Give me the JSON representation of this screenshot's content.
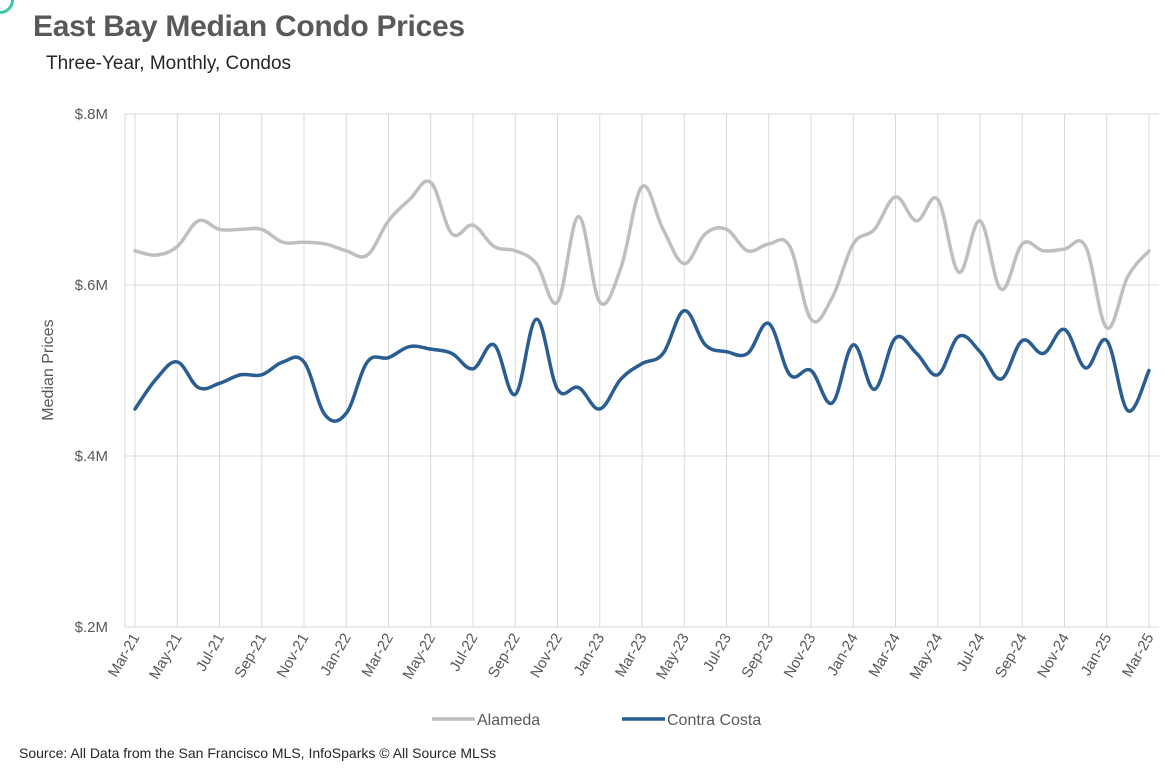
{
  "header": {
    "title": "East Bay Median Condo Prices",
    "subtitle": "Three-Year, Monthly, Condos"
  },
  "footer": {
    "source": "Source: All Data from the San Francisco MLS, InfoSparks © All Source MLSs"
  },
  "colors": {
    "accent": "#3cc8a8",
    "alameda": "#bfbfbf",
    "contra_costa": "#2a5d92",
    "grid": "#d9d9d9"
  },
  "chart_data": {
    "type": "line",
    "title": "East Bay Median Condo Prices",
    "subtitle": "Three-Year, Monthly, Condos",
    "xlabel": "",
    "ylabel": "Median Prices",
    "ylim": [
      200000,
      800000
    ],
    "y_ticks": [
      {
        "value": 200000,
        "label": "$.2M"
      },
      {
        "value": 400000,
        "label": "$.4M"
      },
      {
        "value": 600000,
        "label": "$.6M"
      },
      {
        "value": 800000,
        "label": "$.8M"
      }
    ],
    "x_tick_labels": [
      "Mar-21",
      "May-21",
      "Jul-21",
      "Sep-21",
      "Nov-21",
      "Jan-22",
      "Mar-22",
      "May-22",
      "Jul-22",
      "Sep-22",
      "Nov-22",
      "Jan-23",
      "Mar-23",
      "May-23",
      "Jul-23",
      "Sep-23",
      "Nov-23",
      "Jan-24",
      "Mar-24",
      "May-24",
      "Jul-24",
      "Sep-24",
      "Nov-24",
      "Jan-25",
      "Mar-25"
    ],
    "categories": [
      "Mar-21",
      "Apr-21",
      "May-21",
      "Jun-21",
      "Jul-21",
      "Aug-21",
      "Sep-21",
      "Oct-21",
      "Nov-21",
      "Dec-21",
      "Jan-22",
      "Feb-22",
      "Mar-22",
      "Apr-22",
      "May-22",
      "Jun-22",
      "Jul-22",
      "Aug-22",
      "Sep-22",
      "Oct-22",
      "Nov-22",
      "Dec-22",
      "Jan-23",
      "Feb-23",
      "Mar-23",
      "Apr-23",
      "May-23",
      "Jun-23",
      "Jul-23",
      "Aug-23",
      "Sep-23",
      "Oct-23",
      "Nov-23",
      "Dec-23",
      "Jan-24",
      "Feb-24",
      "Mar-24",
      "Apr-24",
      "May-24",
      "Jun-24",
      "Jul-24",
      "Aug-24",
      "Sep-24",
      "Oct-24",
      "Nov-24",
      "Dec-24",
      "Jan-25",
      "Feb-25",
      "Mar-25"
    ],
    "grid": true,
    "legend_position": "bottom",
    "series": [
      {
        "name": "Alameda",
        "values": [
          640000,
          635000,
          645000,
          675000,
          665000,
          665000,
          665000,
          650000,
          650000,
          648000,
          640000,
          635000,
          675000,
          700000,
          720000,
          660000,
          670000,
          645000,
          640000,
          625000,
          580000,
          680000,
          580000,
          620000,
          715000,
          665000,
          625000,
          660000,
          665000,
          640000,
          648000,
          645000,
          560000,
          585000,
          648000,
          665000,
          703000,
          675000,
          700000,
          615000,
          675000,
          595000,
          648000,
          640000,
          642000,
          645000,
          550000,
          610000,
          640000
        ]
      },
      {
        "name": "Contra Costa",
        "values": [
          455000,
          490000,
          510000,
          480000,
          485000,
          495000,
          495000,
          510000,
          510000,
          448000,
          450000,
          510000,
          515000,
          528000,
          525000,
          520000,
          502000,
          530000,
          472000,
          560000,
          478000,
          480000,
          455000,
          490000,
          508000,
          520000,
          570000,
          530000,
          522000,
          520000,
          555000,
          495000,
          500000,
          462000,
          530000,
          478000,
          538000,
          520000,
          495000,
          540000,
          522000,
          490000,
          535000,
          520000,
          548000,
          503000,
          535000,
          453000,
          500000
        ]
      }
    ]
  }
}
